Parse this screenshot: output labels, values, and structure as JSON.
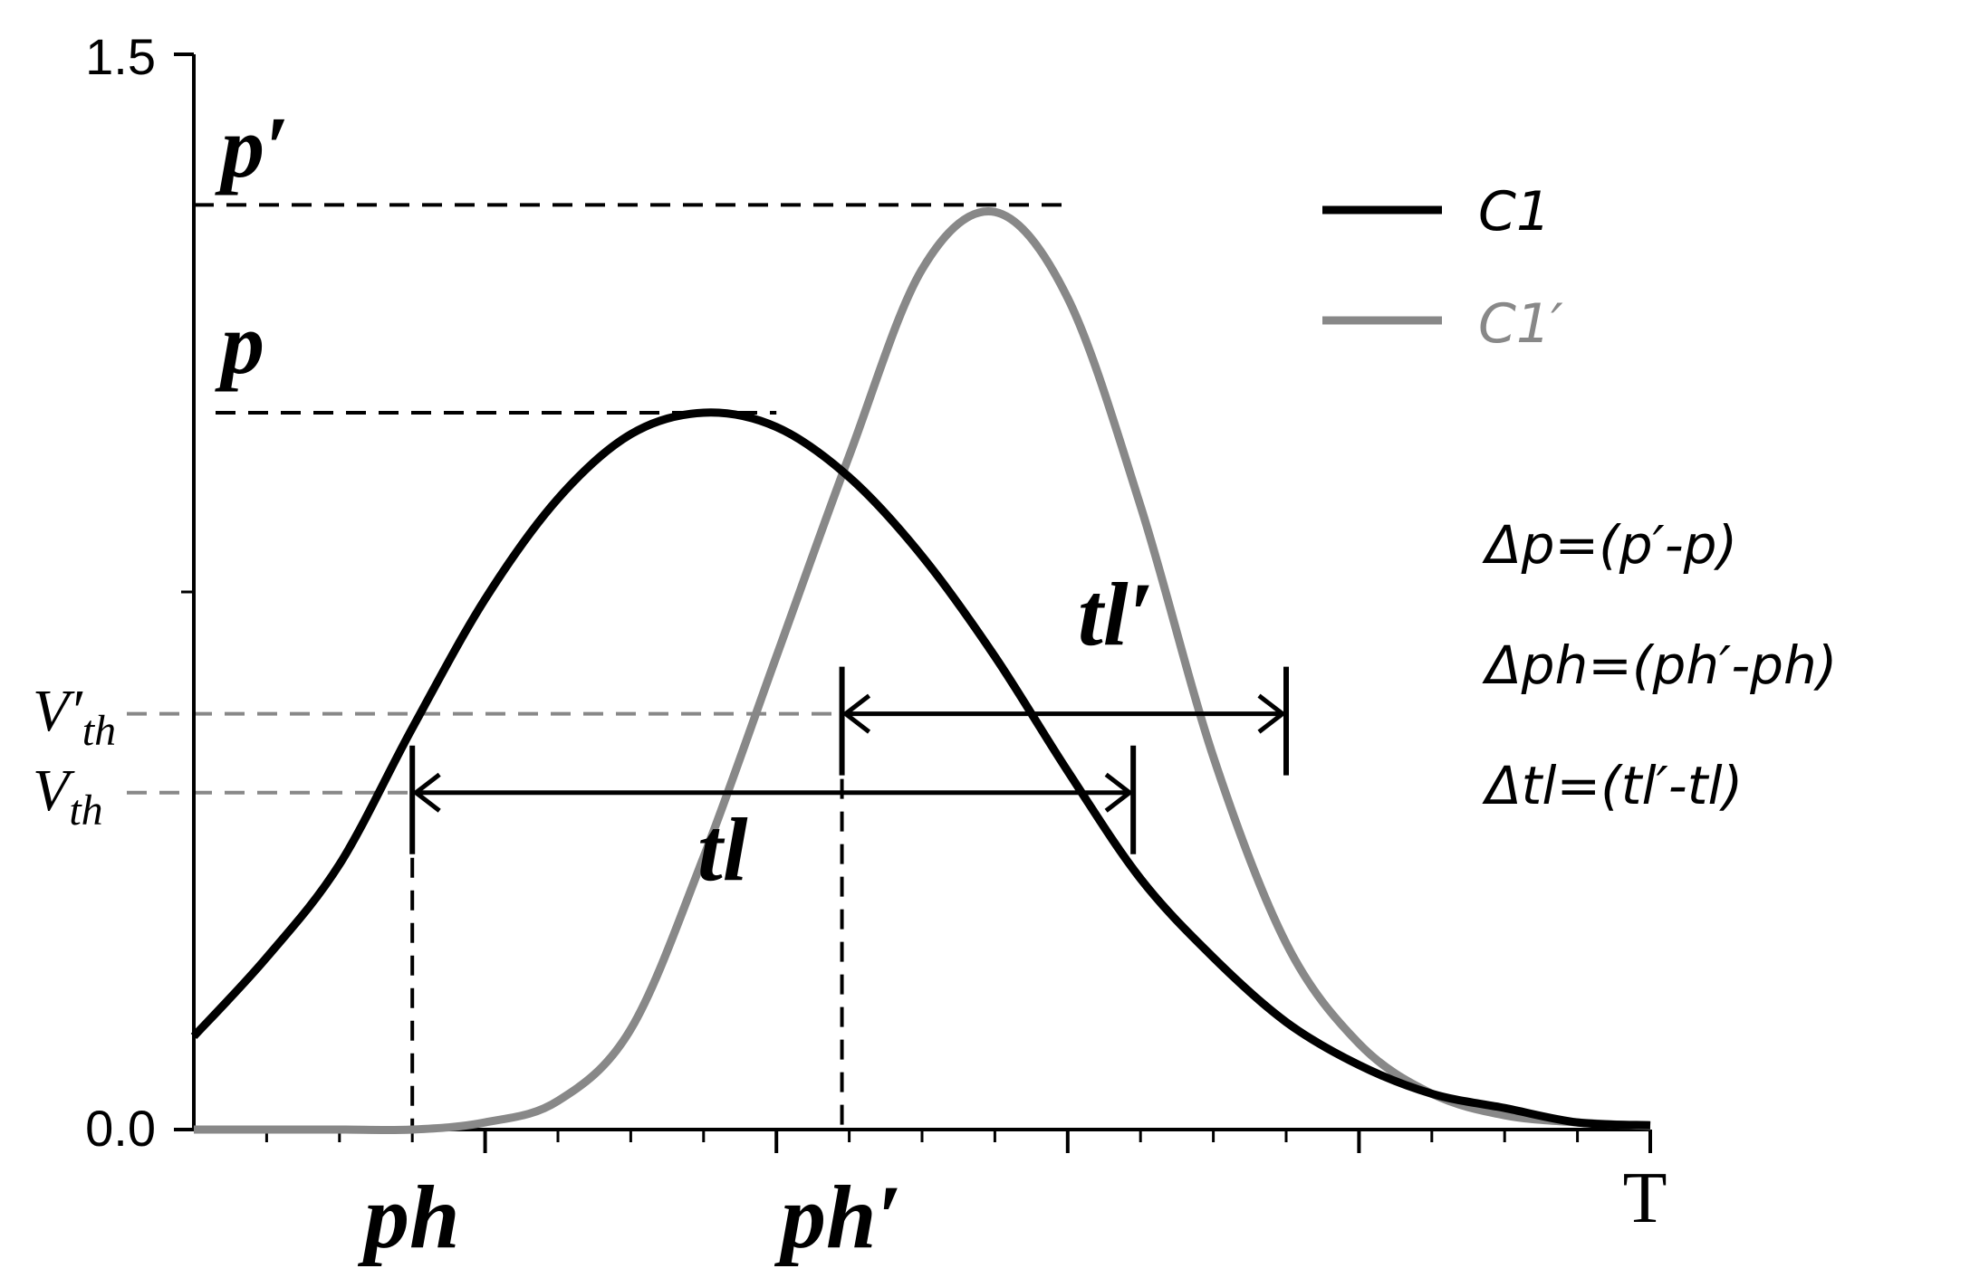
{
  "chart_data": {
    "type": "line",
    "title": "",
    "xlabel": "T",
    "ylabel": "",
    "ylim": [
      0.0,
      1.5
    ],
    "xlim": [
      0,
      10
    ],
    "y_ticks": [
      {
        "value": 0.0,
        "label": "0.0"
      },
      {
        "value": 1.5,
        "label": "1.5"
      }
    ],
    "y_minor_ticks": [
      0.75
    ],
    "x_minor_ticks": [
      0.5,
      1.0,
      1.5,
      2.0,
      2.5,
      3.0,
      3.5,
      4.0,
      4.5,
      5.0,
      5.5,
      6.0,
      6.5,
      7.0,
      7.5,
      8.0,
      8.5,
      9.0,
      9.5,
      10.0
    ],
    "x_major_ticks": [
      2,
      4,
      6,
      8,
      10
    ],
    "series": [
      {
        "name": "C1",
        "color": "#000000",
        "x": [
          0.0,
          0.5,
          1.0,
          1.5,
          2.0,
          2.5,
          3.0,
          3.5,
          4.0,
          4.5,
          5.0,
          5.5,
          6.0,
          6.5,
          7.0,
          7.5,
          8.0,
          8.5,
          9.0,
          9.5,
          10.0
        ],
        "y": [
          0.13,
          0.24,
          0.37,
          0.56,
          0.74,
          0.88,
          0.97,
          1.0,
          0.98,
          0.91,
          0.8,
          0.66,
          0.5,
          0.35,
          0.24,
          0.15,
          0.09,
          0.05,
          0.03,
          0.01,
          0.006
        ]
      },
      {
        "name": "C1′",
        "color": "#888888",
        "x": [
          0.0,
          0.5,
          1.0,
          1.5,
          2.0,
          2.5,
          3.0,
          3.5,
          4.0,
          4.5,
          5.0,
          5.5,
          6.0,
          6.5,
          7.0,
          7.5,
          8.0,
          8.5,
          9.0,
          9.5,
          10.0
        ],
        "y": [
          0.0,
          0.0,
          0.0,
          0.0,
          0.01,
          0.04,
          0.14,
          0.38,
          0.66,
          0.94,
          1.2,
          1.28,
          1.16,
          0.87,
          0.52,
          0.26,
          0.12,
          0.05,
          0.02,
          0.01,
          0.005
        ]
      }
    ],
    "legend": {
      "placement": "top-right",
      "entries": [
        "C1",
        "C1′"
      ]
    },
    "annotations": {
      "p_label": "p",
      "p_prime_label": "p′",
      "p_value": 1.0,
      "p_prime_value": 1.29,
      "p_x": 4.0,
      "p_prime_x": 6.0,
      "vth_prefix": "V",
      "vth_sub": "th",
      "vth_prime_prefix": "V′",
      "vth_prime_sub": "th",
      "vth_value": 0.47,
      "vth_prime_value": 0.58,
      "ph_label": "ph",
      "ph_prime_label": "ph′",
      "ph_x": 1.5,
      "ph_prime_x": 4.45,
      "tl_label": "tl",
      "tl_prime_label": "tl′",
      "tl_end_x": 6.45,
      "tl_prime_end_x": 7.5
    },
    "equations": [
      "Δp=(p′-p)",
      "Δph=(ph′-ph)",
      "Δtl=(tl′-tl)"
    ]
  }
}
